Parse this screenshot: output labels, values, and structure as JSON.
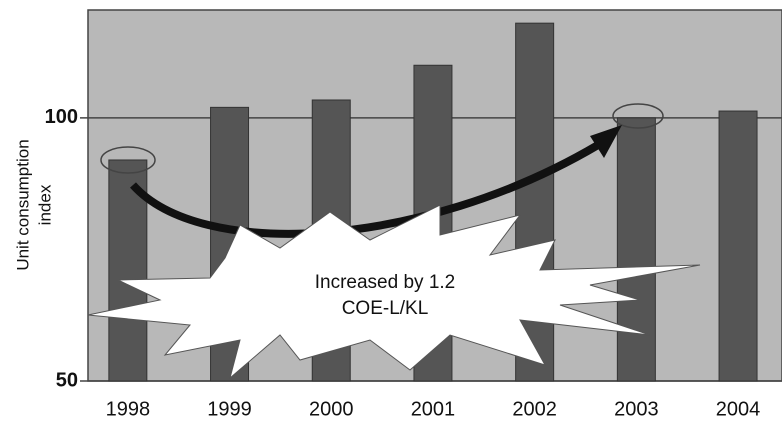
{
  "chart_data": {
    "type": "bar",
    "categories": [
      "1998",
      "1999",
      "2000",
      "2001",
      "2002",
      "2003",
      "2004"
    ],
    "values": [
      92,
      102,
      103.4,
      110,
      118,
      100,
      101.3
    ],
    "color": "#555555",
    "ylim": [
      50,
      120.5
    ],
    "yticks": [
      50,
      100
    ],
    "grid": true,
    "y_label": [
      "Unit consumption",
      "index"
    ],
    "annotation": [
      "Increased by 1.2",
      "COE-L/KL"
    ]
  }
}
